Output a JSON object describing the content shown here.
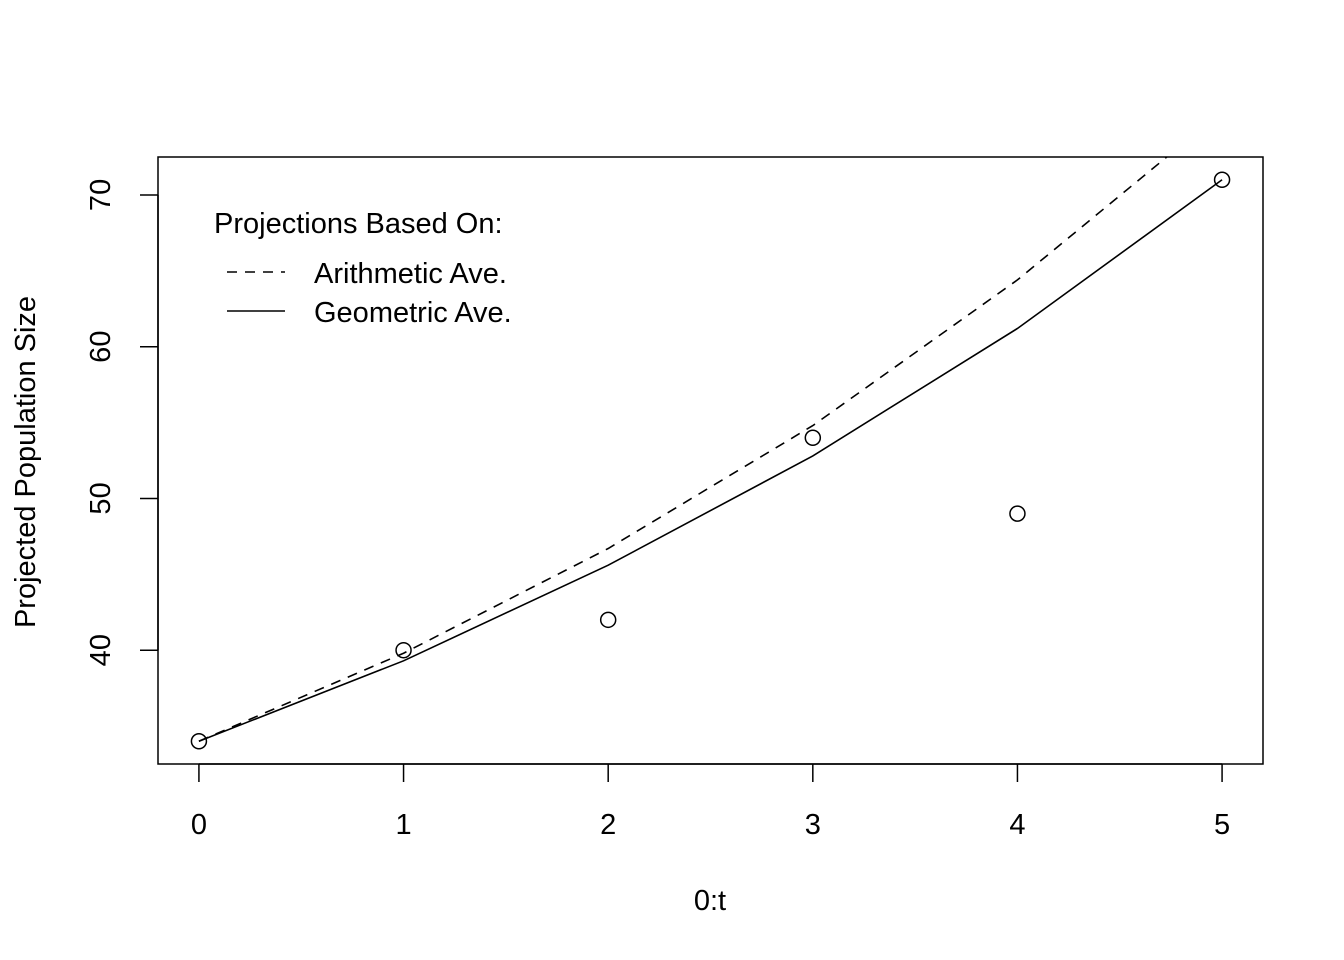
{
  "chart_data": {
    "type": "line",
    "title": "",
    "xlabel": "0:t",
    "ylabel": "Projected Population Size",
    "xlim": [
      -0.2,
      5.2
    ],
    "ylim": [
      32.5,
      72.5
    ],
    "x_ticks": [
      0,
      1,
      2,
      3,
      4,
      5
    ],
    "y_ticks": [
      40,
      50,
      60,
      70
    ],
    "grid": false,
    "legend": {
      "title": "Projections Based On:",
      "position": "top-left",
      "entries": [
        {
          "label": "Arithmetic Ave.",
          "line_style": "dashed"
        },
        {
          "label": "Geometric Ave.",
          "line_style": "solid"
        }
      ]
    },
    "points": {
      "x": [
        0,
        1,
        2,
        3,
        4,
        5
      ],
      "y": [
        34,
        40,
        42,
        54,
        49,
        71
      ],
      "marker": "open-circle"
    },
    "series": [
      {
        "name": "Arithmetic Ave.",
        "line_style": "dashed",
        "x": [
          0,
          1,
          2,
          3,
          4,
          5
        ],
        "y": [
          34,
          39.8,
          46.7,
          54.8,
          64.4,
          75.5
        ]
      },
      {
        "name": "Geometric Ave.",
        "line_style": "solid",
        "x": [
          0,
          1,
          2,
          3,
          4,
          5
        ],
        "y": [
          34,
          39.3,
          45.6,
          52.8,
          61.2,
          71
        ]
      }
    ],
    "colors": {
      "line": "#000000",
      "background": "#ffffff"
    }
  }
}
